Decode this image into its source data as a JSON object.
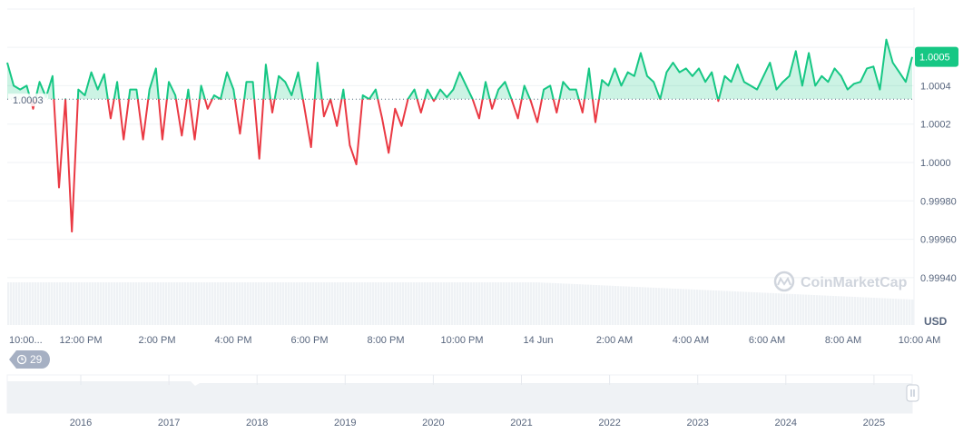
{
  "chart_data": {
    "type": "line",
    "ylim": [
      0.9993,
      1.00065
    ],
    "y_ticks": [
      "1.0004",
      "1.0002",
      "1.0000",
      "0.99980",
      "0.99960",
      "0.99940"
    ],
    "y_tick_values": [
      1.0004,
      1.0002,
      1.0,
      0.9998,
      0.9996,
      0.9994
    ],
    "y_unit": "USD",
    "x_ticks": [
      "10:00...",
      "12:00 PM",
      "2:00 PM",
      "4:00 PM",
      "6:00 PM",
      "8:00 PM",
      "10:00 PM",
      "14 Jun",
      "2:00 AM",
      "4:00 AM",
      "6:00 AM",
      "8:00 AM",
      "10:00 AM"
    ],
    "x_range": [
      "10:00 AM",
      "10:00 AM (next day)"
    ],
    "baseline": {
      "value": 1.00033,
      "label": "1.0003"
    },
    "current_price_label": "1.0005",
    "colors": {
      "up": "#16c784",
      "down": "#ea3943",
      "up_fill": "#16c784"
    },
    "grid": true,
    "values": [
      1.00052,
      1.0004,
      1.00038,
      1.0004,
      1.00028,
      1.00042,
      1.00034,
      1.00045,
      0.99987,
      1.00033,
      0.99964,
      1.00038,
      1.00035,
      1.00047,
      1.00038,
      1.00046,
      1.00023,
      1.00042,
      1.00012,
      1.00038,
      1.00038,
      1.00012,
      1.00038,
      1.00049,
      1.00012,
      1.00042,
      1.00035,
      1.00014,
      1.00038,
      1.00012,
      1.0004,
      1.00028,
      1.00035,
      1.00033,
      1.00047,
      1.00038,
      1.00015,
      1.00042,
      1.00042,
      1.00002,
      1.00051,
      1.00026,
      1.00045,
      1.00042,
      1.00035,
      1.00047,
      1.00028,
      1.00008,
      1.00052,
      1.00024,
      1.00033,
      1.00019,
      1.00038,
      1.00009,
      0.99999,
      1.00035,
      1.00033,
      1.00038,
      1.00023,
      1.00005,
      1.00028,
      1.00019,
      1.00033,
      1.00038,
      1.00026,
      1.00038,
      1.00032,
      1.00038,
      1.00034,
      1.00038,
      1.00047,
      1.0004,
      1.00033,
      1.00023,
      1.00042,
      1.00028,
      1.00038,
      1.00042,
      1.00033,
      1.00023,
      1.0004,
      1.00032,
      1.00021,
      1.00038,
      1.0004,
      1.00026,
      1.00042,
      1.00038,
      1.00038,
      1.00026,
      1.00049,
      1.00021,
      1.00043,
      1.0004,
      1.00049,
      1.0004,
      1.00047,
      1.00045,
      1.00057,
      1.00045,
      1.00042,
      1.00033,
      1.00047,
      1.00052,
      1.00047,
      1.00049,
      1.00045,
      1.00049,
      1.00042,
      1.00047,
      1.00032,
      1.00045,
      1.00042,
      1.00051,
      1.00042,
      1.0004,
      1.00038,
      1.00045,
      1.00052,
      1.00038,
      1.00042,
      1.00045,
      1.00058,
      1.0004,
      1.00057,
      1.0004,
      1.00045,
      1.00042,
      1.00049,
      1.00045,
      1.00038,
      1.00041,
      1.00042,
      1.00049,
      1.0005,
      1.00038,
      1.00064,
      1.00052,
      1.00047,
      1.00042,
      1.00055
    ]
  },
  "navigator": {
    "years": [
      "2016",
      "2017",
      "2018",
      "2019",
      "2020",
      "2021",
      "2022",
      "2023",
      "2024",
      "2025"
    ],
    "history_badge": "29",
    "history_icon": "history-icon",
    "handle_icon": "drag-handle-icon"
  },
  "watermark": "CoinMarketCap"
}
